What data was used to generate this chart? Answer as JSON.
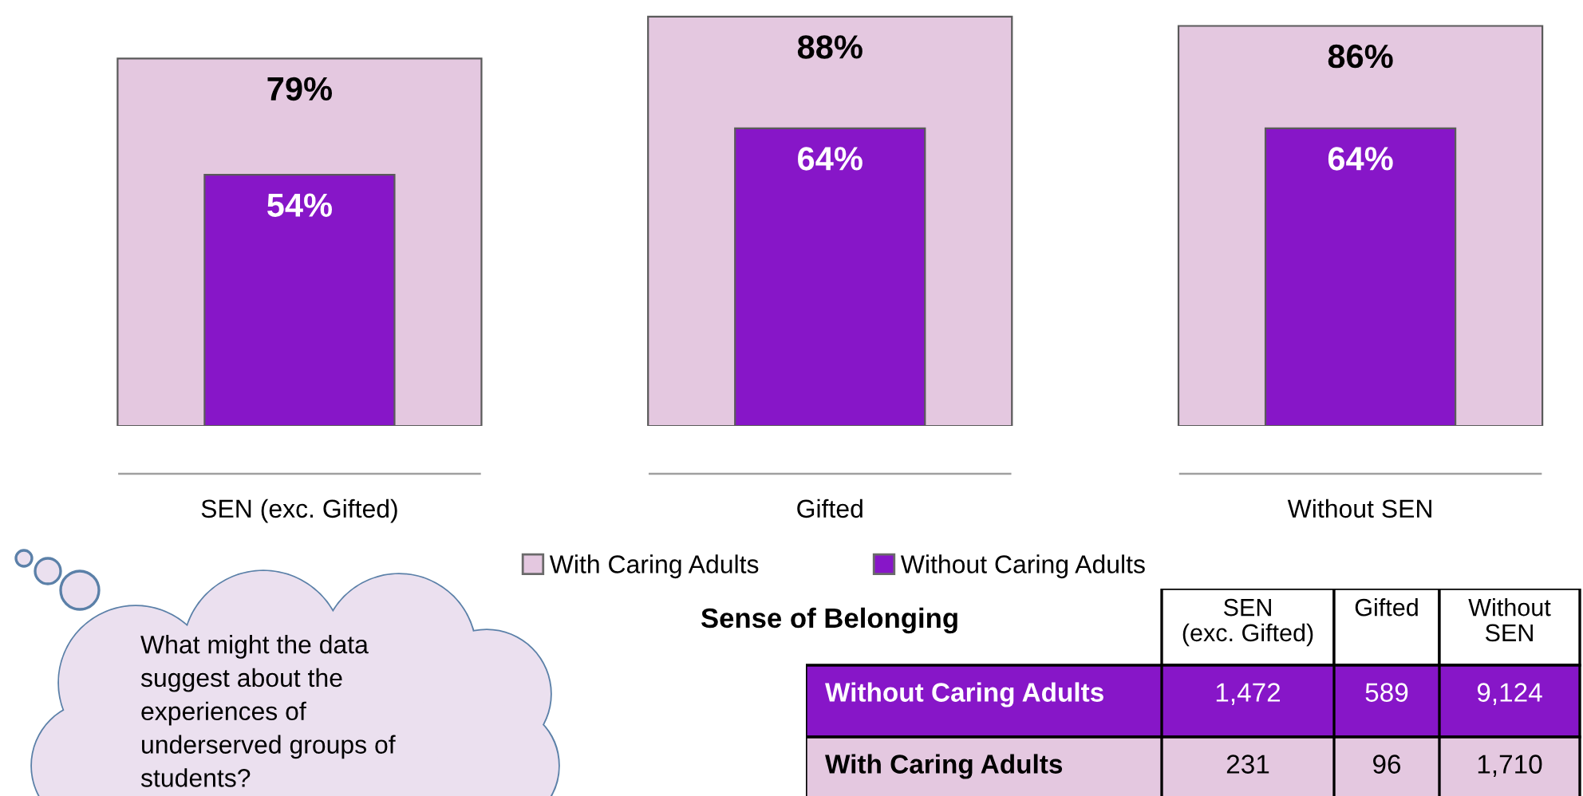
{
  "chart_data": [
    {
      "type": "bar",
      "categories": [
        "SEN (exc. Gifted)",
        "Gifted",
        "Without SEN"
      ],
      "series": [
        {
          "name": "With Caring Adults",
          "color": "#e4c8e0",
          "values": [
            79,
            88,
            86
          ],
          "value_labels": [
            "79%",
            "88%",
            "86%"
          ]
        },
        {
          "name": "Without Caring Adults",
          "color": "#8716c8",
          "values": [
            54,
            64,
            64
          ],
          "value_labels": [
            "54%",
            "64%",
            "64%"
          ]
        }
      ],
      "tick_labels": "x",
      "legend": "bottom",
      "annotations": [
        "What might the data\nsuggest about the\nexperiences of\nunderserved groups of\nstudents?"
      ]
    },
    {
      "type": "other",
      "title": "Sense of Belonging",
      "categories": [
        "SEN\n(exc. Gifted)",
        "Gifted",
        "Without\nSEN"
      ],
      "series": [
        {
          "name": "Without Caring Adults",
          "color": "#8716c8",
          "values": [
            1472,
            589,
            9124
          ],
          "value_labels": [
            "1,472",
            "589",
            "9,124"
          ]
        },
        {
          "name": "With Caring Adults",
          "color": "#e4c8e0",
          "values": [
            231,
            96,
            1710
          ],
          "value_labels": [
            "231",
            "96",
            "1,710"
          ]
        }
      ]
    }
  ]
}
